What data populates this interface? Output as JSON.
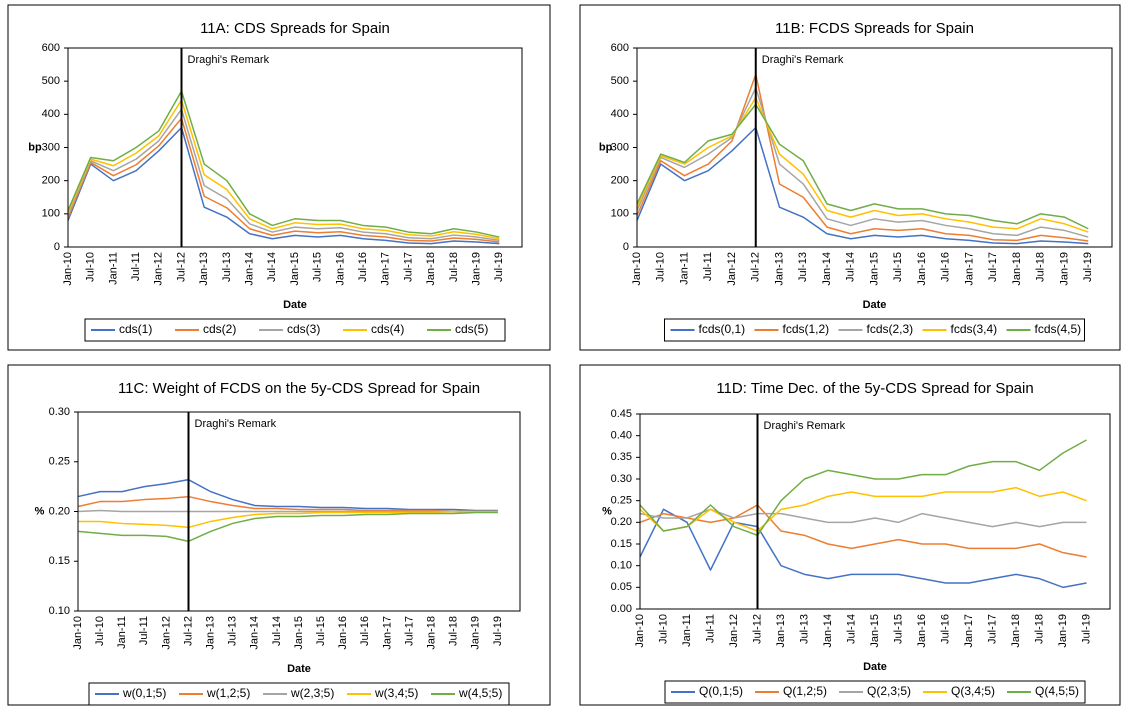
{
  "chart_data": [
    {
      "type": "line",
      "title": "11A: CDS Spreads for Spain",
      "x_label": "Date",
      "y_label": "bp",
      "categories": [
        "Jan-10",
        "Jul-10",
        "Jan-11",
        "Jul-11",
        "Jan-12",
        "Jul-12",
        "Jan-13",
        "Jul-13",
        "Jan-14",
        "Jul-14",
        "Jan-15",
        "Jul-15",
        "Jan-16",
        "Jul-16",
        "Jan-17",
        "Jul-17",
        "Jan-18",
        "Jul-18",
        "Jan-19",
        "Jul-19"
      ],
      "ylim": [
        0,
        600
      ],
      "yticks": [
        0,
        100,
        200,
        300,
        400,
        500,
        600
      ],
      "grid": false,
      "annotation": {
        "text": "Draghi's Remark",
        "at": "Jul-12"
      },
      "series": [
        {
          "name": "cds(1)",
          "color": "#4472c4",
          "values": [
            80,
            250,
            200,
            230,
            290,
            360,
            120,
            90,
            40,
            25,
            35,
            30,
            35,
            25,
            20,
            12,
            10,
            18,
            15,
            10
          ]
        },
        {
          "name": "cds(2)",
          "color": "#ed7d31",
          "values": [
            88,
            255,
            215,
            248,
            305,
            388,
            153,
            118,
            55,
            35,
            48,
            43,
            46,
            35,
            30,
            20,
            18,
            27,
            23,
            15
          ]
        },
        {
          "name": "cds(3)",
          "color": "#a5a5a5",
          "values": [
            95,
            260,
            230,
            265,
            320,
            415,
            185,
            145,
            70,
            45,
            60,
            55,
            58,
            45,
            40,
            28,
            25,
            36,
            30,
            20
          ]
        },
        {
          "name": "cds(4)",
          "color": "#ffc000",
          "values": [
            103,
            265,
            245,
            283,
            335,
            443,
            218,
            173,
            85,
            55,
            73,
            68,
            69,
            55,
            50,
            37,
            33,
            46,
            38,
            25
          ]
        },
        {
          "name": "cds(5)",
          "color": "#70ad47",
          "values": [
            110,
            270,
            260,
            300,
            350,
            470,
            250,
            200,
            100,
            65,
            85,
            80,
            80,
            65,
            60,
            45,
            40,
            55,
            45,
            30
          ]
        }
      ]
    },
    {
      "type": "line",
      "title": "11B: FCDS Spreads for Spain",
      "x_label": "Date",
      "y_label": "bp",
      "categories": [
        "Jan-10",
        "Jul-10",
        "Jan-11",
        "Jul-11",
        "Jan-12",
        "Jul-12",
        "Jan-13",
        "Jul-13",
        "Jan-14",
        "Jul-14",
        "Jan-15",
        "Jul-15",
        "Jan-16",
        "Jul-16",
        "Jan-17",
        "Jul-17",
        "Jan-18",
        "Jul-18",
        "Jan-19",
        "Jul-19"
      ],
      "ylim": [
        0,
        600
      ],
      "yticks": [
        0,
        100,
        200,
        300,
        400,
        500,
        600
      ],
      "grid": false,
      "annotation": {
        "text": "Draghi's Remark",
        "at": "Jul-12"
      },
      "series": [
        {
          "name": "fcds(0,1)",
          "color": "#4472c4",
          "values": [
            80,
            250,
            200,
            230,
            290,
            360,
            120,
            90,
            40,
            25,
            35,
            30,
            35,
            25,
            20,
            12,
            10,
            18,
            15,
            10
          ]
        },
        {
          "name": "fcds(1,2)",
          "color": "#ed7d31",
          "values": [
            95,
            260,
            215,
            250,
            320,
            520,
            190,
            150,
            60,
            40,
            55,
            50,
            55,
            40,
            35,
            22,
            20,
            35,
            28,
            18
          ]
        },
        {
          "name": "fcds(2,3)",
          "color": "#a5a5a5",
          "values": [
            110,
            270,
            240,
            280,
            330,
            480,
            250,
            190,
            85,
            65,
            85,
            75,
            80,
            65,
            55,
            40,
            35,
            60,
            50,
            30
          ]
        },
        {
          "name": "fcds(3,4)",
          "color": "#ffc000",
          "values": [
            120,
            275,
            250,
            300,
            335,
            450,
            280,
            220,
            110,
            90,
            110,
            95,
            100,
            85,
            75,
            60,
            55,
            85,
            70,
            45
          ]
        },
        {
          "name": "fcds(4,5)",
          "color": "#70ad47",
          "values": [
            130,
            280,
            255,
            320,
            340,
            430,
            310,
            260,
            130,
            110,
            130,
            115,
            115,
            100,
            95,
            80,
            70,
            100,
            90,
            55
          ]
        }
      ]
    },
    {
      "type": "line",
      "title": "11C: Weight of FCDS on the 5y-CDS Spread for Spain",
      "x_label": "Date",
      "y_label": "%",
      "categories": [
        "Jan-10",
        "Jul-10",
        "Jan-11",
        "Jul-11",
        "Jan-12",
        "Jul-12",
        "Jan-13",
        "Jul-13",
        "Jan-14",
        "Jul-14",
        "Jan-15",
        "Jul-15",
        "Jan-16",
        "Jul-16",
        "Jan-17",
        "Jul-17",
        "Jan-18",
        "Jul-18",
        "Jan-19",
        "Jul-19"
      ],
      "ylim": [
        0.1,
        0.3
      ],
      "yticks": [
        {
          "value": 0.1,
          "label": "0.10"
        },
        {
          "value": 0.15,
          "label": "0.15"
        },
        {
          "value": 0.2,
          "label": "0.20"
        },
        {
          "value": 0.25,
          "label": "0.25"
        },
        {
          "value": 0.3,
          "label": "0.30"
        }
      ],
      "grid": false,
      "annotation": {
        "text": "Draghi's Remark",
        "at": "Jul-12"
      },
      "series": [
        {
          "name": "w(0,1;5)",
          "color": "#4472c4",
          "values": [
            0.215,
            0.22,
            0.22,
            0.225,
            0.228,
            0.232,
            0.22,
            0.212,
            0.206,
            0.205,
            0.205,
            0.204,
            0.204,
            0.203,
            0.203,
            0.202,
            0.202,
            0.202,
            0.201,
            0.201
          ]
        },
        {
          "name": "w(1,2;5)",
          "color": "#ed7d31",
          "values": [
            0.205,
            0.21,
            0.21,
            0.212,
            0.213,
            0.215,
            0.21,
            0.206,
            0.203,
            0.203,
            0.202,
            0.202,
            0.202,
            0.201,
            0.201,
            0.201,
            0.201,
            0.2,
            0.2,
            0.2
          ]
        },
        {
          "name": "w(2,3;5)",
          "color": "#a5a5a5",
          "values": [
            0.2,
            0.201,
            0.2,
            0.2,
            0.2,
            0.2,
            0.2,
            0.2,
            0.2,
            0.2,
            0.2,
            0.2,
            0.2,
            0.2,
            0.2,
            0.2,
            0.2,
            0.2,
            0.2,
            0.2
          ]
        },
        {
          "name": "w(3,4;5)",
          "color": "#ffc000",
          "values": [
            0.19,
            0.19,
            0.188,
            0.187,
            0.186,
            0.184,
            0.19,
            0.194,
            0.197,
            0.198,
            0.198,
            0.199,
            0.199,
            0.199,
            0.199,
            0.199,
            0.199,
            0.2,
            0.2,
            0.2
          ]
        },
        {
          "name": "w(4,5;5)",
          "color": "#70ad47",
          "values": [
            0.18,
            0.178,
            0.176,
            0.176,
            0.175,
            0.17,
            0.18,
            0.188,
            0.193,
            0.195,
            0.195,
            0.196,
            0.196,
            0.197,
            0.197,
            0.198,
            0.198,
            0.198,
            0.199,
            0.199
          ]
        }
      ]
    },
    {
      "type": "line",
      "title": "11D: Time Dec. of the 5y-CDS Spread for Spain",
      "x_label": "Date",
      "y_label": "%",
      "categories": [
        "Jan-10",
        "Jul-10",
        "Jan-11",
        "Jul-11",
        "Jan-12",
        "Jul-12",
        "Jan-13",
        "Jul-13",
        "Jan-14",
        "Jul-14",
        "Jan-15",
        "Jul-15",
        "Jan-16",
        "Jul-16",
        "Jan-17",
        "Jul-17",
        "Jan-18",
        "Jul-18",
        "Jan-19",
        "Jul-19"
      ],
      "ylim": [
        0,
        0.45
      ],
      "yticks": [
        {
          "value": 0,
          "label": "0.00"
        },
        {
          "value": 0.05,
          "label": "0.05"
        },
        {
          "value": 0.1,
          "label": "0.10"
        },
        {
          "value": 0.15,
          "label": "0.15"
        },
        {
          "value": 0.2,
          "label": "0.20"
        },
        {
          "value": 0.25,
          "label": "0.25"
        },
        {
          "value": 0.3,
          "label": "0.30"
        },
        {
          "value": 0.35,
          "label": "0.35"
        },
        {
          "value": 0.4,
          "label": "0.40"
        },
        {
          "value": 0.45,
          "label": "0.45"
        }
      ],
      "grid": false,
      "annotation": {
        "text": "Draghi's Remark",
        "at": "Jul-12"
      },
      "series": [
        {
          "name": "Q(0,1;5)",
          "color": "#4472c4",
          "values": [
            0.12,
            0.23,
            0.2,
            0.09,
            0.2,
            0.19,
            0.1,
            0.08,
            0.07,
            0.08,
            0.08,
            0.08,
            0.07,
            0.06,
            0.06,
            0.07,
            0.08,
            0.07,
            0.05,
            0.06
          ]
        },
        {
          "name": "Q(1,2;5)",
          "color": "#ed7d31",
          "values": [
            0.2,
            0.22,
            0.21,
            0.2,
            0.21,
            0.24,
            0.18,
            0.17,
            0.15,
            0.14,
            0.15,
            0.16,
            0.15,
            0.15,
            0.14,
            0.14,
            0.14,
            0.15,
            0.13,
            0.12
          ]
        },
        {
          "name": "Q(2,3;5)",
          "color": "#a5a5a5",
          "values": [
            0.22,
            0.21,
            0.21,
            0.23,
            0.21,
            0.22,
            0.22,
            0.21,
            0.2,
            0.2,
            0.21,
            0.2,
            0.22,
            0.21,
            0.2,
            0.19,
            0.2,
            0.19,
            0.2,
            0.2
          ]
        },
        {
          "name": "Q(3,4;5)",
          "color": "#ffc000",
          "values": [
            0.23,
            0.18,
            0.19,
            0.23,
            0.2,
            0.18,
            0.23,
            0.24,
            0.26,
            0.27,
            0.26,
            0.26,
            0.26,
            0.27,
            0.27,
            0.27,
            0.28,
            0.26,
            0.27,
            0.25
          ]
        },
        {
          "name": "Q(4,5;5)",
          "color": "#70ad47",
          "values": [
            0.24,
            0.18,
            0.19,
            0.24,
            0.19,
            0.17,
            0.25,
            0.3,
            0.32,
            0.31,
            0.3,
            0.3,
            0.31,
            0.31,
            0.33,
            0.34,
            0.34,
            0.32,
            0.36,
            0.39
          ]
        }
      ]
    }
  ]
}
